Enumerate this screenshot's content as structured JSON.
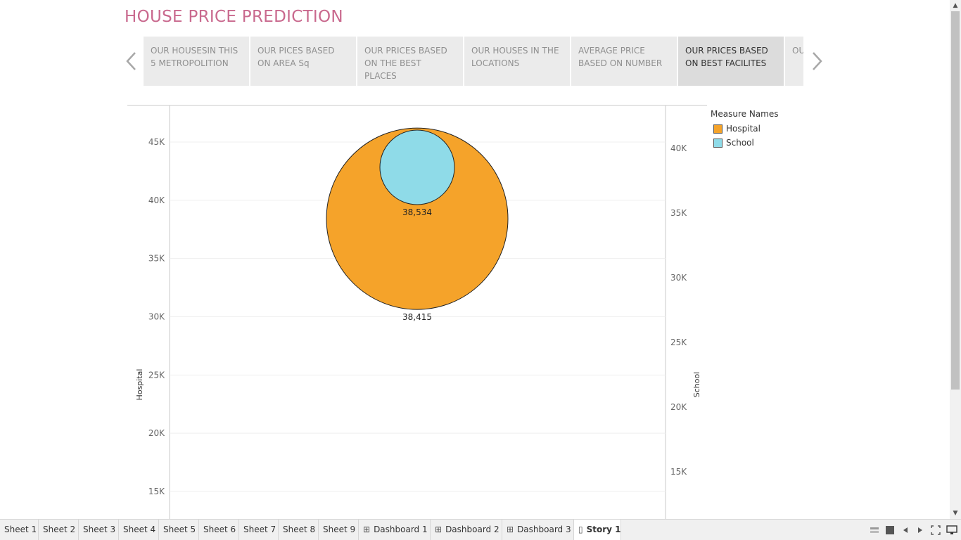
{
  "story": {
    "title": "HOUSE PRICE PREDICTION",
    "points": [
      {
        "label": "OUR HOUSESIN THIS 5 METROPOLITION",
        "active": false
      },
      {
        "label": "OUR PICES BASED ON AREA Sq",
        "active": false
      },
      {
        "label": "OUR PRICES BASED ON THE BEST PLACES",
        "active": false
      },
      {
        "label": "OUR HOUSES IN THE LOCATIONS",
        "active": false
      },
      {
        "label": "AVERAGE PRICE BASED ON NUMBER",
        "active": false
      },
      {
        "label": "OUR PRICES BASED ON BEST FACILITES",
        "active": true
      },
      {
        "label": "OU BSI",
        "active": false
      }
    ]
  },
  "legend": {
    "title": "Measure Names",
    "items": [
      {
        "label": "Hospital",
        "color": "#f5a32a"
      },
      {
        "label": "School",
        "color": "#8fdbe8"
      }
    ]
  },
  "chart_data": {
    "type": "scatter",
    "left_axis": {
      "label": "Hospital",
      "ticks": [
        "45K",
        "40K",
        "35K",
        "30K",
        "25K",
        "20K",
        "15K"
      ],
      "tick_values": [
        45000,
        40000,
        35000,
        30000,
        25000,
        20000,
        15000
      ]
    },
    "right_axis": {
      "label": "School",
      "ticks": [
        "40K",
        "35K",
        "30K",
        "25K",
        "20K",
        "15K"
      ],
      "tick_values": [
        40000,
        35000,
        30000,
        25000,
        20000,
        15000
      ]
    },
    "series": [
      {
        "name": "Hospital",
        "value": 38415,
        "label": "38,415",
        "color": "#f5a32a",
        "axis": "left"
      },
      {
        "name": "School",
        "value": 38534,
        "label": "38,534",
        "color": "#8fdbe8",
        "axis": "right"
      }
    ],
    "grid": true
  },
  "tabs": [
    {
      "label": "Sheet 1",
      "icon": "",
      "active": false
    },
    {
      "label": "Sheet 2",
      "icon": "",
      "active": false
    },
    {
      "label": "Sheet 3",
      "icon": "",
      "active": false
    },
    {
      "label": "Sheet 4",
      "icon": "",
      "active": false
    },
    {
      "label": "Sheet 5",
      "icon": "",
      "active": false
    },
    {
      "label": "Sheet 6",
      "icon": "",
      "active": false
    },
    {
      "label": "Sheet 7",
      "icon": "",
      "active": false
    },
    {
      "label": "Sheet 8",
      "icon": "",
      "active": false
    },
    {
      "label": "Sheet 9",
      "icon": "",
      "active": false
    },
    {
      "label": "Dashboard 1",
      "icon": "dashboard-icon",
      "active": false
    },
    {
      "label": "Dashboard 2",
      "icon": "dashboard-icon",
      "active": false
    },
    {
      "label": "Dashboard 3",
      "icon": "dashboard-icon",
      "active": false
    },
    {
      "label": "Story 1",
      "icon": "story-icon",
      "active": true
    }
  ]
}
